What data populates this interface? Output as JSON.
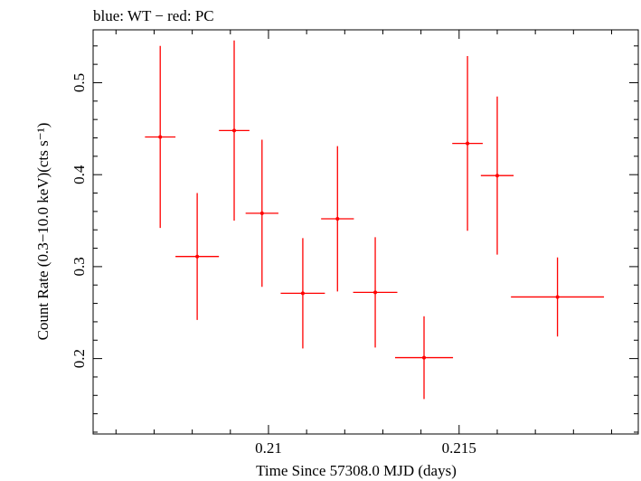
{
  "chart_data": {
    "type": "scatter",
    "title": "blue: WT − red: PC",
    "xlabel": "Time Since 57308.0 MJD (days)",
    "ylabel": "Count Rate (0.3−10.0 keV)(cts s⁻¹)",
    "xlim": [
      0.2054,
      0.2197
    ],
    "ylim": [
      0.118,
      0.5575
    ],
    "x_ticks": [
      0.21,
      0.215
    ],
    "x_tick_labels": [
      "0.21",
      "0.215"
    ],
    "y_ticks": [
      0.2,
      0.3,
      0.4,
      0.5
    ],
    "y_tick_labels": [
      "0.2",
      "0.3",
      "0.4",
      "0.5"
    ],
    "grid": false,
    "series": [
      {
        "name": "PC",
        "color": "#ff0000",
        "points": [
          {
            "x": 0.20716,
            "y": 0.441,
            "xerr": 0.0004,
            "yerr": 0.099
          },
          {
            "x": 0.20813,
            "y": 0.311,
            "xerr": 0.00057,
            "yerr": 0.069
          },
          {
            "x": 0.2091,
            "y": 0.448,
            "xerr": 0.0004,
            "yerr": 0.098
          },
          {
            "x": 0.20983,
            "y": 0.358,
            "xerr": 0.00043,
            "yerr": 0.08
          },
          {
            "x": 0.2109,
            "y": 0.271,
            "xerr": 0.00058,
            "yerr": 0.06
          },
          {
            "x": 0.21181,
            "y": 0.352,
            "xerr": 0.00043,
            "yerr": 0.079
          },
          {
            "x": 0.2128,
            "y": 0.272,
            "xerr": 0.00058,
            "yerr": 0.06
          },
          {
            "x": 0.21408,
            "y": 0.201,
            "xerr": 0.00076,
            "yerr": 0.045
          },
          {
            "x": 0.21522,
            "y": 0.434,
            "xerr": 0.0004,
            "yerr": 0.095
          },
          {
            "x": 0.216,
            "y": 0.399,
            "xerr": 0.00043,
            "yerr": 0.086
          },
          {
            "x": 0.21758,
            "y": 0.267,
            "xerr": 0.00122,
            "yerr": 0.043
          }
        ]
      }
    ]
  }
}
